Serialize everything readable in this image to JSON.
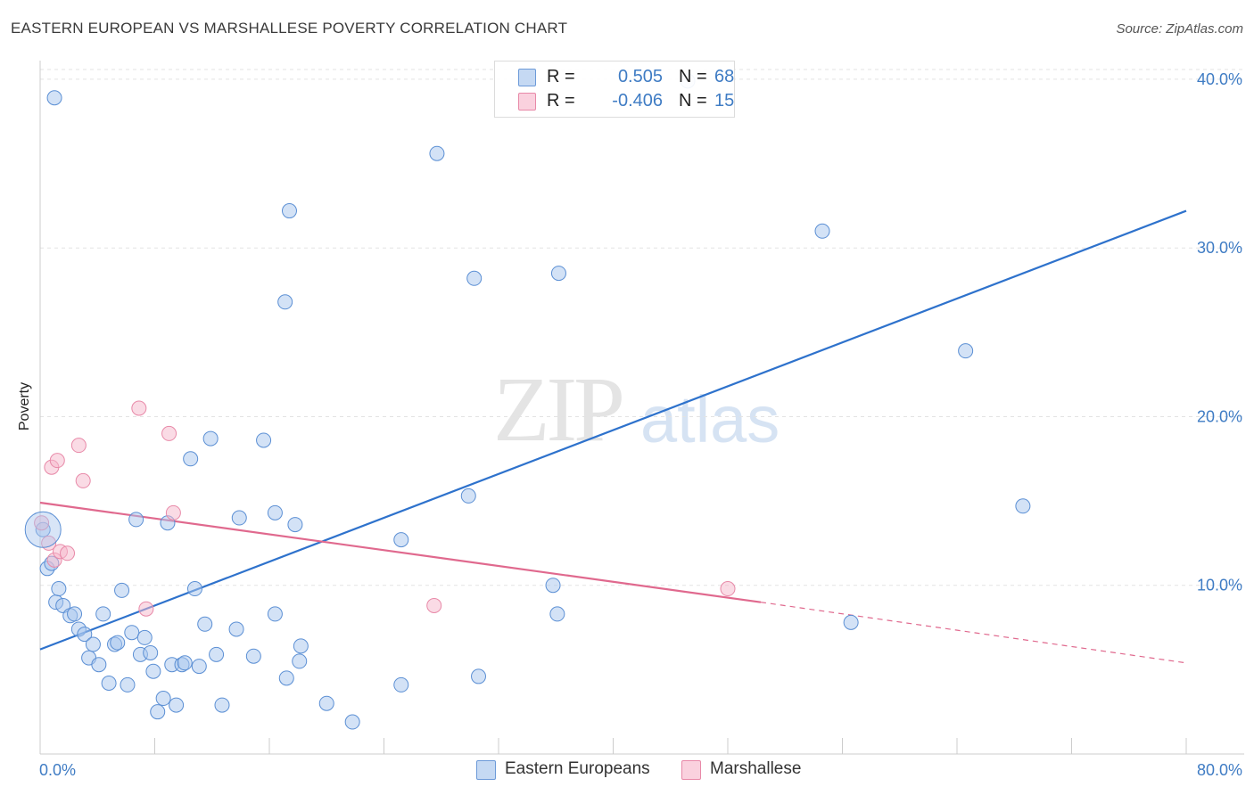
{
  "title": "EASTERN EUROPEAN VS MARSHALLESE POVERTY CORRELATION CHART",
  "source": "Source: ZipAtlas.com",
  "watermark": {
    "zip": "ZIP",
    "atlas": "atlas"
  },
  "legend": {
    "rows": [
      {
        "r_label": "R =",
        "r_value": "0.505",
        "n_label": "N =",
        "n_value": "68",
        "color": "#a8c6ee"
      },
      {
        "r_label": "R =",
        "r_value": "-0.406",
        "n_label": "N =",
        "n_value": "15",
        "color": "#f6b8cb"
      }
    ],
    "bottom": [
      {
        "label": "Eastern Europeans",
        "color": "#a8c6ee"
      },
      {
        "label": "Marshallese",
        "color": "#f6b8cb"
      }
    ]
  },
  "chart_data": {
    "type": "scatter",
    "title": "EASTERN EUROPEAN VS MARSHALLESE POVERTY CORRELATION CHART",
    "xlabel": "",
    "ylabel": "Poverty",
    "xlim": [
      0,
      80
    ],
    "ylim": [
      0,
      41
    ],
    "x_tick_labels": [
      "0.0%",
      "80.0%"
    ],
    "y_ticks": [
      10,
      20,
      30,
      40
    ],
    "y_tick_labels": [
      "10.0%",
      "20.0%",
      "30.0%",
      "40.0%"
    ],
    "grid": "horizontal dashed",
    "legend_position": "top-center",
    "series": [
      {
        "name": "Eastern Europeans",
        "color": "#a8c6ee",
        "stroke": "#5b8fd4",
        "trend": {
          "x": [
            0,
            80
          ],
          "y": [
            6.2,
            32.2
          ],
          "color": "#2e72cc"
        },
        "points": [
          [
            0.2,
            13.3
          ],
          [
            0.5,
            11.0
          ],
          [
            0.8,
            11.3
          ],
          [
            1.1,
            9.0
          ],
          [
            1.3,
            9.8
          ],
          [
            1.6,
            8.8
          ],
          [
            2.1,
            8.2
          ],
          [
            2.4,
            8.3
          ],
          [
            2.7,
            7.4
          ],
          [
            3.1,
            7.1
          ],
          [
            3.4,
            5.7
          ],
          [
            3.7,
            6.5
          ],
          [
            4.1,
            5.3
          ],
          [
            4.4,
            8.3
          ],
          [
            4.8,
            4.2
          ],
          [
            5.2,
            6.5
          ],
          [
            5.4,
            6.6
          ],
          [
            5.7,
            9.7
          ],
          [
            6.1,
            4.1
          ],
          [
            6.4,
            7.2
          ],
          [
            6.7,
            13.9
          ],
          [
            7.0,
            5.9
          ],
          [
            7.3,
            6.9
          ],
          [
            7.7,
            6.0
          ],
          [
            7.9,
            4.9
          ],
          [
            8.2,
            2.5
          ],
          [
            8.6,
            3.3
          ],
          [
            8.9,
            13.7
          ],
          [
            9.2,
            5.3
          ],
          [
            9.5,
            2.9
          ],
          [
            9.9,
            5.3
          ],
          [
            10.1,
            5.4
          ],
          [
            10.5,
            17.5
          ],
          [
            10.8,
            9.8
          ],
          [
            11.1,
            5.2
          ],
          [
            11.5,
            7.7
          ],
          [
            11.9,
            18.7
          ],
          [
            12.3,
            5.9
          ],
          [
            12.7,
            2.9
          ],
          [
            13.7,
            7.4
          ],
          [
            13.9,
            14.0
          ],
          [
            14.9,
            5.8
          ],
          [
            15.6,
            18.6
          ],
          [
            16.4,
            14.3
          ],
          [
            16.4,
            8.3
          ],
          [
            17.2,
            4.5
          ],
          [
            17.4,
            32.2
          ],
          [
            17.8,
            13.6
          ],
          [
            18.1,
            5.5
          ],
          [
            18.2,
            6.4
          ],
          [
            17.1,
            26.8
          ],
          [
            20.0,
            3.0
          ],
          [
            21.8,
            1.9
          ],
          [
            25.2,
            12.7
          ],
          [
            25.2,
            4.1
          ],
          [
            27.7,
            35.6
          ],
          [
            29.9,
            15.3
          ],
          [
            30.3,
            28.2
          ],
          [
            30.6,
            4.6
          ],
          [
            35.8,
            10.0
          ],
          [
            36.1,
            8.3
          ],
          [
            36.2,
            28.5
          ],
          [
            45.2,
            39.9
          ],
          [
            54.6,
            31.0
          ],
          [
            56.6,
            7.8
          ],
          [
            64.6,
            23.9
          ],
          [
            68.6,
            14.7
          ],
          [
            1.0,
            38.9
          ]
        ]
      },
      {
        "name": "Marshallese",
        "color": "#f6b8cb",
        "stroke": "#e889a8",
        "trend": {
          "x": [
            0,
            50.3
          ],
          "y": [
            14.9,
            9.0
          ],
          "dashed_to": [
            80,
            5.4
          ],
          "color": "#e0698e"
        },
        "points": [
          [
            0.1,
            13.7
          ],
          [
            0.6,
            12.5
          ],
          [
            0.8,
            17.0
          ],
          [
            1.0,
            11.5
          ],
          [
            1.2,
            17.4
          ],
          [
            1.4,
            12.0
          ],
          [
            1.9,
            11.9
          ],
          [
            2.7,
            18.3
          ],
          [
            3.0,
            16.2
          ],
          [
            6.9,
            20.5
          ],
          [
            7.4,
            8.6
          ],
          [
            9.0,
            19.0
          ],
          [
            9.3,
            14.3
          ],
          [
            27.5,
            8.8
          ],
          [
            48.0,
            9.8
          ]
        ]
      }
    ]
  }
}
